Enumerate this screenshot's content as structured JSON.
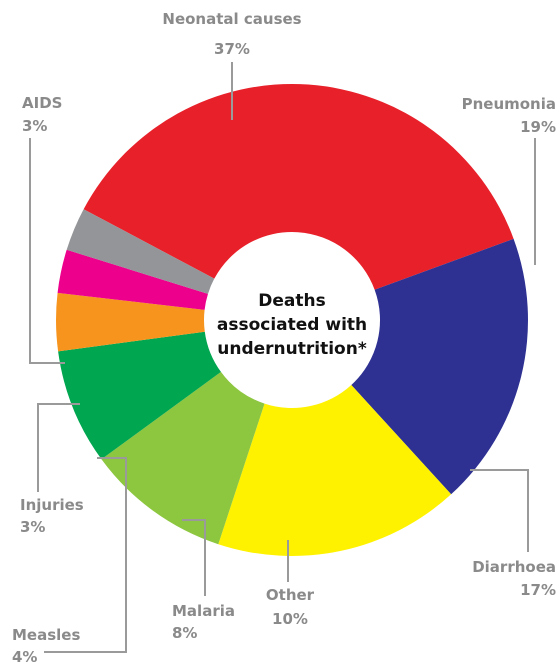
{
  "chart_data": {
    "type": "pie",
    "variant": "donut",
    "center_text": [
      "Deaths",
      "associated with",
      "undernutrition*"
    ],
    "series": [
      {
        "name": "Neonatal causes",
        "label": "37%",
        "value": 37,
        "color": "#e8202a"
      },
      {
        "name": "Pneumonia",
        "label": "19%",
        "value": 19,
        "color": "#2e3192"
      },
      {
        "name": "Diarrhoea",
        "label": "17%",
        "value": 17,
        "color": "#fff200"
      },
      {
        "name": "Other",
        "label": "10%",
        "value": 10,
        "color": "#8dc63f"
      },
      {
        "name": "Malaria",
        "label": "8%",
        "value": 8,
        "color": "#00a650"
      },
      {
        "name": "Measles",
        "label": "4%",
        "value": 4,
        "color": "#f7941d"
      },
      {
        "name": "Injuries",
        "label": "3%",
        "value": 3,
        "color": "#ec008c"
      },
      {
        "name": "AIDS",
        "label": "3%",
        "value": 3,
        "color": "#939598"
      }
    ]
  }
}
